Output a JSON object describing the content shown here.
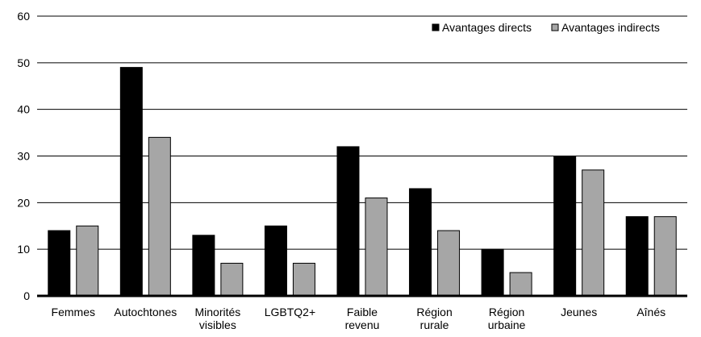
{
  "chart_data": {
    "type": "bar",
    "categories": [
      [
        "Femmes"
      ],
      [
        "Autochtones"
      ],
      [
        "Minorités",
        "visibles"
      ],
      [
        "LGBTQ2+"
      ],
      [
        "Faible",
        "revenu"
      ],
      [
        "Région",
        "rurale"
      ],
      [
        "Région",
        "urbaine"
      ],
      [
        "Jeunes"
      ],
      [
        "Aînés"
      ]
    ],
    "series": [
      {
        "name": "Avantages directs",
        "color": "#000000",
        "values": [
          14,
          49,
          13,
          15,
          32,
          23,
          10,
          30,
          17
        ]
      },
      {
        "name": "Avantages indirects",
        "color": "#a6a6a6",
        "values": [
          15,
          34,
          7,
          7,
          21,
          14,
          5,
          27,
          17
        ]
      }
    ],
    "ylim": [
      0,
      60
    ],
    "yticks": [
      0,
      10,
      20,
      30,
      40,
      50,
      60
    ],
    "grid": true,
    "legend_position": "top-right",
    "title": "",
    "xlabel": "",
    "ylabel": ""
  }
}
